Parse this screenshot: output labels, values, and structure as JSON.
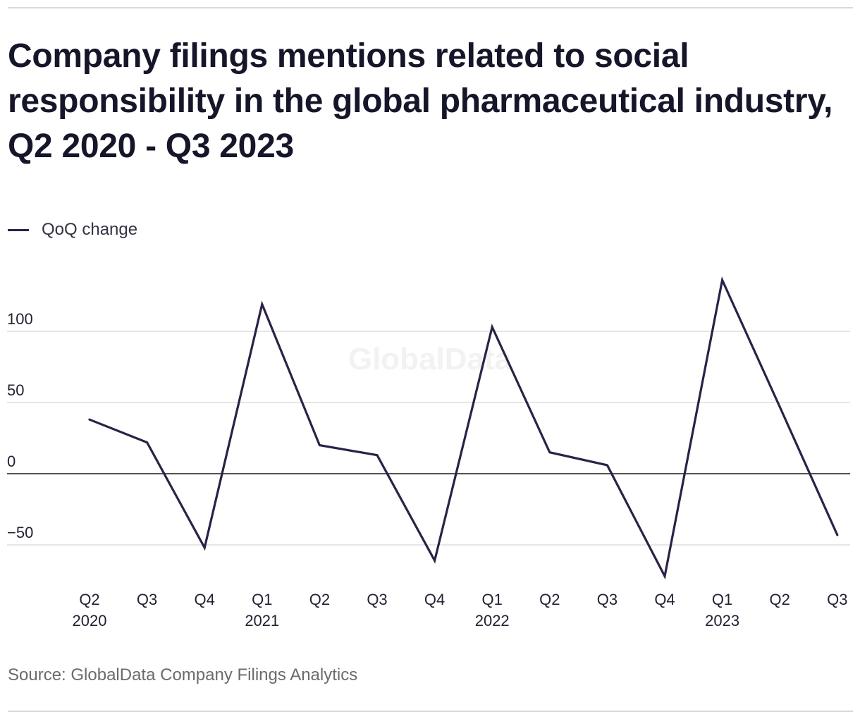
{
  "chart_data": {
    "type": "line",
    "title": "Company filings mentions related to social responsibility in the global pharmaceutical industry, Q2 2020 - Q3 2023",
    "source": "Source: GlobalData Company Filings Analytics",
    "watermark": "GlobalData",
    "legend_position": "top-left",
    "grid": true,
    "ylim": [
      -75,
      145
    ],
    "yticks": [
      -50,
      0,
      50,
      100
    ],
    "ytick_labels": [
      "−50",
      "0",
      "50",
      "100"
    ],
    "categories": [
      {
        "quarter": "Q2",
        "year": "2020"
      },
      {
        "quarter": "Q3",
        "year": ""
      },
      {
        "quarter": "Q4",
        "year": ""
      },
      {
        "quarter": "Q1",
        "year": "2021"
      },
      {
        "quarter": "Q2",
        "year": ""
      },
      {
        "quarter": "Q3",
        "year": ""
      },
      {
        "quarter": "Q4",
        "year": ""
      },
      {
        "quarter": "Q1",
        "year": "2022"
      },
      {
        "quarter": "Q2",
        "year": ""
      },
      {
        "quarter": "Q3",
        "year": ""
      },
      {
        "quarter": "Q4",
        "year": ""
      },
      {
        "quarter": "Q1",
        "year": "2023"
      },
      {
        "quarter": "Q2",
        "year": ""
      },
      {
        "quarter": "Q3",
        "year": ""
      }
    ],
    "series": [
      {
        "name": "QoQ change",
        "color": "#2c2147",
        "values": [
          38,
          22,
          -52,
          119,
          20,
          13,
          -61,
          103,
          15,
          6,
          -72,
          136,
          47,
          -43
        ]
      }
    ]
  }
}
